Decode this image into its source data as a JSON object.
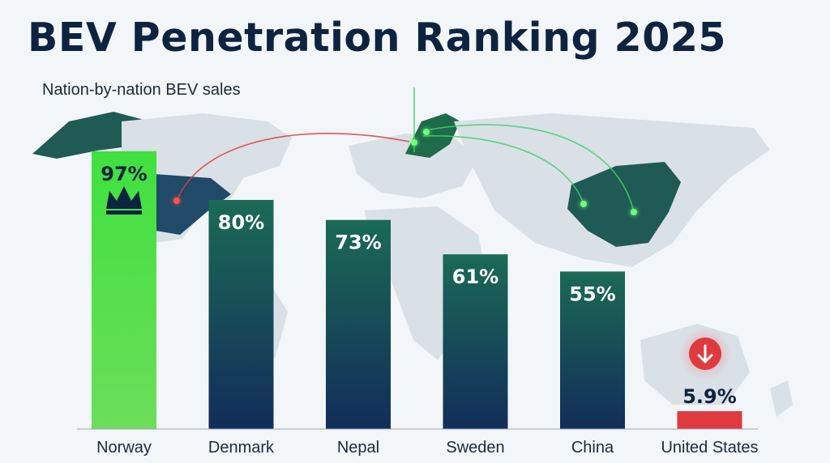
{
  "title": "BEV Penetration Ranking 2025",
  "subtitle": "Nation-by-nation BEV sales",
  "colors": {
    "background": "#f3f6f8",
    "land": "#d9e0e6",
    "land_highlight": "#1f5a55",
    "top_bar": "#4fd84a",
    "bar_top": "#1b6a55",
    "bar_bottom": "#122d5a",
    "negative_bar": "#e03a40",
    "title": "#0d2340"
  },
  "icons": [
    "crown-icon",
    "down-arrow-icon"
  ],
  "chart_data": {
    "type": "bar",
    "categories": [
      "Norway",
      "Denmark",
      "Nepal",
      "Sweden",
      "China",
      "United States"
    ],
    "values": [
      97,
      80,
      73,
      61,
      55,
      5.9
    ],
    "value_labels": [
      "97%",
      "80%",
      "73%",
      "61%",
      "55%",
      "5.9%"
    ],
    "title": "BEV Penetration Ranking 2025",
    "subtitle": "Nation-by-nation BEV sales",
    "xlabel": "",
    "ylabel": "",
    "ylim": [
      0,
      100
    ],
    "grid": false,
    "legend": "none",
    "highlight": {
      "top": "Norway",
      "lowest": "United States"
    }
  }
}
